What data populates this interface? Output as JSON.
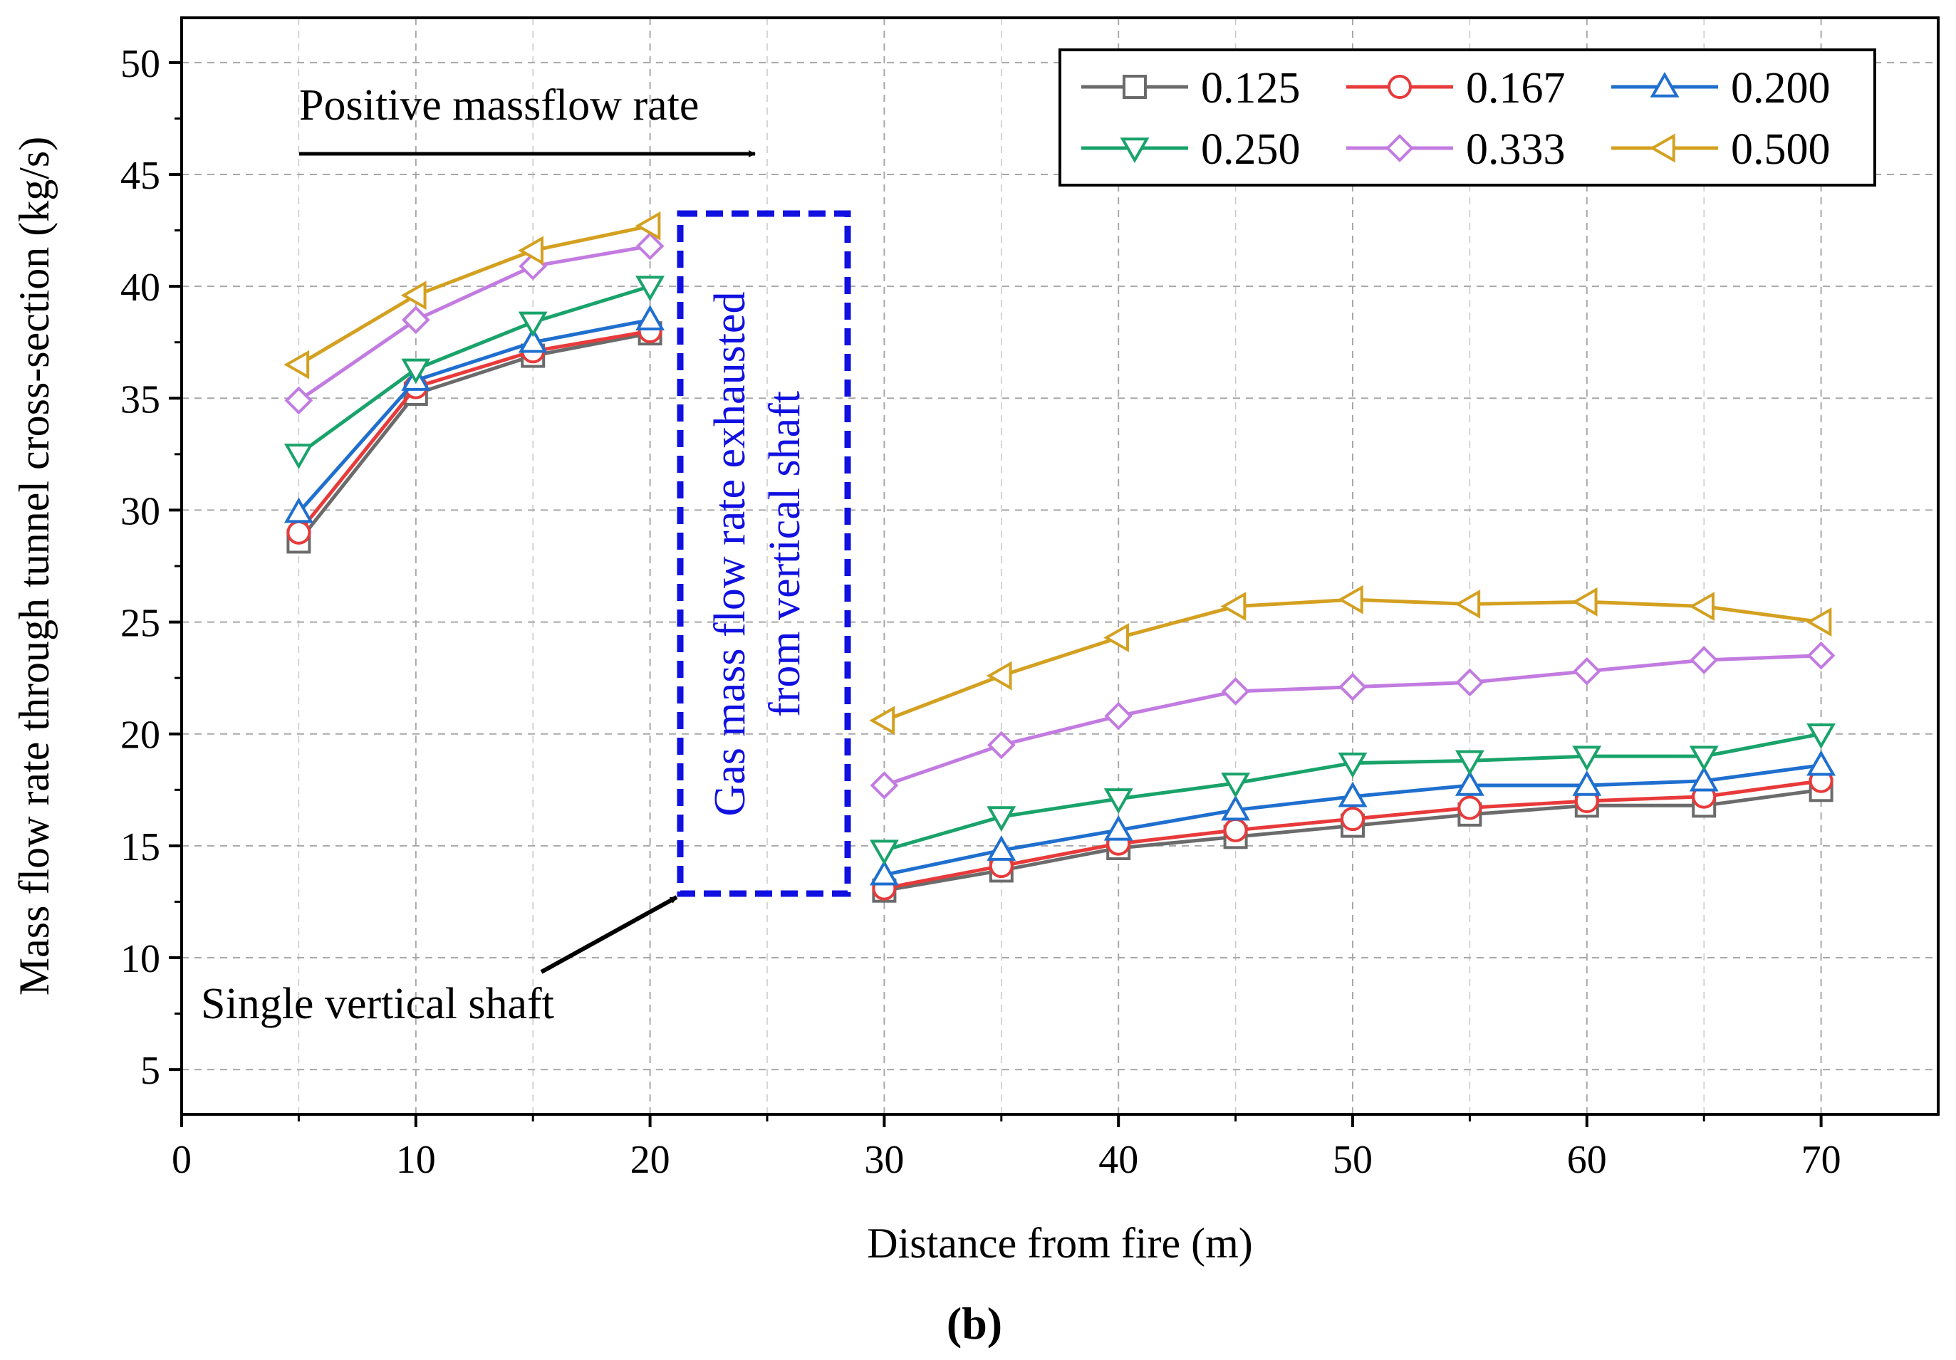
{
  "chart_data": {
    "type": "line",
    "xlabel": "Distance from fire (m)",
    "ylabel": "Mass flow rate through tunnel cross-section (kg/s)",
    "xlim": [
      0,
      75
    ],
    "ylim": [
      3,
      52
    ],
    "xticks": [
      0,
      10,
      20,
      30,
      40,
      50,
      60,
      70
    ],
    "yticks": [
      5,
      10,
      15,
      20,
      25,
      30,
      35,
      40,
      45,
      50
    ],
    "grid": true,
    "legend_position": "top-right",
    "panel_label": "(b)",
    "series": [
      {
        "name": "0.125",
        "color": "#6b6b6b",
        "marker": "square",
        "x": [
          5,
          10,
          15,
          20,
          30,
          35,
          40,
          45,
          50,
          55,
          60,
          65,
          70
        ],
        "values": [
          28.6,
          35.2,
          36.9,
          37.9,
          13.0,
          13.9,
          14.9,
          15.4,
          15.9,
          16.4,
          16.8,
          16.8,
          17.5
        ]
      },
      {
        "name": "0.167",
        "color": "#e83a3a",
        "marker": "circle",
        "x": [
          5,
          10,
          15,
          20,
          30,
          35,
          40,
          45,
          50,
          55,
          60,
          65,
          70
        ],
        "values": [
          29.0,
          35.5,
          37.1,
          38.0,
          13.1,
          14.1,
          15.1,
          15.7,
          16.2,
          16.7,
          17.0,
          17.2,
          17.9
        ]
      },
      {
        "name": "0.200",
        "color": "#1f6fcf",
        "marker": "triangle-up",
        "x": [
          5,
          10,
          15,
          20,
          30,
          35,
          40,
          45,
          50,
          55,
          60,
          65,
          70
        ],
        "values": [
          29.9,
          35.8,
          37.5,
          38.5,
          13.7,
          14.8,
          15.7,
          16.6,
          17.2,
          17.7,
          17.7,
          17.9,
          18.6
        ]
      },
      {
        "name": "0.250",
        "color": "#19a36b",
        "marker": "triangle-down",
        "x": [
          5,
          10,
          15,
          20,
          30,
          35,
          40,
          45,
          50,
          55,
          60,
          65,
          70
        ],
        "values": [
          32.5,
          36.3,
          38.4,
          40.0,
          14.8,
          16.3,
          17.1,
          17.8,
          18.7,
          18.8,
          19.0,
          19.0,
          20.0
        ]
      },
      {
        "name": "0.333",
        "color": "#c27be0",
        "marker": "diamond",
        "x": [
          5,
          10,
          15,
          20,
          30,
          35,
          40,
          45,
          50,
          55,
          60,
          65,
          70
        ],
        "values": [
          34.9,
          38.5,
          40.9,
          41.8,
          17.7,
          19.5,
          20.8,
          21.9,
          22.1,
          22.3,
          22.8,
          23.3,
          23.5
        ]
      },
      {
        "name": "0.500",
        "color": "#d4a020",
        "marker": "triangle-left",
        "x": [
          5,
          10,
          15,
          20,
          30,
          35,
          40,
          45,
          50,
          55,
          60,
          65,
          70
        ],
        "values": [
          36.5,
          39.6,
          41.6,
          42.7,
          20.6,
          22.6,
          24.3,
          25.7,
          26.0,
          25.8,
          25.9,
          25.7,
          25.0
        ]
      }
    ],
    "annotations": {
      "positive_flow": "Positive massflow rate",
      "shaft_exhaust_line1": "Gas mass flow rate exhausted",
      "shaft_exhaust_line2": "from vertical shaft",
      "single_shaft": "Single vertical shaft",
      "exhaust_box_color": "#1010e0"
    }
  }
}
